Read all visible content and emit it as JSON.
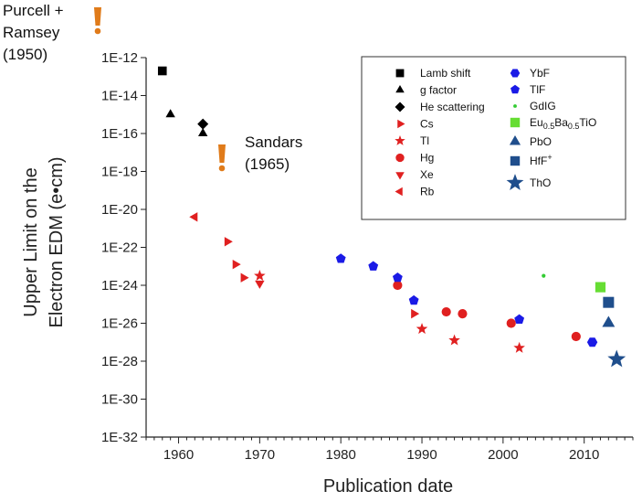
{
  "chart_data": {
    "type": "scatter",
    "title": "",
    "xlabel": "Publication date",
    "ylabel_line1": "Upper Limit on the",
    "ylabel_line2": "Electron EDM (e•cm)",
    "xlim": [
      1956,
      2016
    ],
    "ylim_log10": [
      -32,
      -12
    ],
    "x_ticks": [
      1960,
      1970,
      1980,
      1990,
      2000,
      2010
    ],
    "y_tick_labels": [
      "1E-12",
      "1E-14",
      "1E-16",
      "1E-18",
      "1E-20",
      "1E-22",
      "1E-24",
      "1E-26",
      "1E-28",
      "1E-30",
      "1E-32"
    ],
    "series": [
      {
        "name": "Lamb shift",
        "marker": "square",
        "color": "#000000",
        "points": [
          [
            1958,
            -12.7
          ]
        ]
      },
      {
        "name": "g factor",
        "marker": "triangle-up",
        "color": "#000000",
        "points": [
          [
            1959,
            -15.0
          ],
          [
            1963,
            -16.0
          ]
        ]
      },
      {
        "name": "He scattering",
        "marker": "diamond",
        "color": "#000000",
        "points": [
          [
            1963,
            -15.5
          ]
        ]
      },
      {
        "name": "Cs",
        "marker": "triangle-right",
        "color": "#e02020",
        "points": [
          [
            1966,
            -21.7
          ],
          [
            1967,
            -22.9
          ],
          [
            1968,
            -23.6
          ],
          [
            1989,
            -25.5
          ]
        ]
      },
      {
        "name": "Tl",
        "marker": "star",
        "color": "#e02020",
        "points": [
          [
            1970,
            -23.5
          ],
          [
            1990,
            -26.3
          ],
          [
            1994,
            -26.9
          ],
          [
            2002,
            -27.3
          ]
        ]
      },
      {
        "name": "Hg",
        "marker": "circle",
        "color": "#e02020",
        "points": [
          [
            1987,
            -24.0
          ],
          [
            1993,
            -25.4
          ],
          [
            1995,
            -25.5
          ],
          [
            2001,
            -26.0
          ],
          [
            2009,
            -26.7
          ]
        ]
      },
      {
        "name": "Xe",
        "marker": "triangle-down",
        "color": "#e02020",
        "points": [
          [
            1970,
            -23.9
          ]
        ]
      },
      {
        "name": "Rb",
        "marker": "triangle-left",
        "color": "#e02020",
        "points": [
          [
            1962,
            -20.4
          ]
        ]
      },
      {
        "name": "YbF",
        "marker": "hexagon",
        "color": "#1a1ae6",
        "points": [
          [
            2011,
            -27.0
          ]
        ]
      },
      {
        "name": "TlF",
        "marker": "pentagon",
        "color": "#1a1ae6",
        "points": [
          [
            1980,
            -22.6
          ],
          [
            1984,
            -23.0
          ],
          [
            1987,
            -23.6
          ],
          [
            1989,
            -24.8
          ],
          [
            2002,
            -25.8
          ]
        ]
      },
      {
        "name": "GdIG",
        "marker": "dot",
        "color": "#33cc33",
        "points": [
          [
            2005,
            -23.5
          ]
        ]
      },
      {
        "name": "Eu0.5Ba0.5TiO",
        "marker": "square",
        "color": "#66dd33",
        "points": [
          [
            2012,
            -24.1
          ]
        ]
      },
      {
        "name": "PbO",
        "marker": "triangle-up",
        "color": "#1f4e8c",
        "points": [
          [
            2013,
            -26.0
          ]
        ]
      },
      {
        "name": "HfF+",
        "marker": "square",
        "color": "#1f4e8c",
        "points": [
          [
            2013,
            -24.9
          ]
        ]
      },
      {
        "name": "ThO",
        "marker": "star",
        "color": "#1f4e8c",
        "points": [
          [
            2014,
            -27.9
          ]
        ]
      }
    ],
    "legend": {
      "placement": "top-right",
      "col1": [
        {
          "series": "Lamb shift",
          "label": "Lamb shift"
        },
        {
          "series": "g factor",
          "label": "g factor"
        },
        {
          "series": "He scattering",
          "label": "He scattering"
        },
        {
          "series": "Cs",
          "label": "Cs"
        },
        {
          "series": "Tl",
          "label": "Tl"
        },
        {
          "series": "Hg",
          "label": "Hg"
        },
        {
          "series": "Xe",
          "label": "Xe"
        },
        {
          "series": "Rb",
          "label": "Rb"
        }
      ],
      "col2": [
        {
          "series": "YbF",
          "label": "YbF"
        },
        {
          "series": "TlF",
          "label": "TlF"
        },
        {
          "series": "GdIG",
          "label": "GdIG"
        },
        {
          "series": "Eu0.5Ba0.5TiO",
          "label": "Eu0.5Ba0.5TiO",
          "label_parts": [
            "Eu",
            "0.5",
            "Ba",
            "0.5",
            "TiO"
          ]
        },
        {
          "series": "PbO",
          "label": "PbO"
        },
        {
          "series": "HfF+",
          "label": "HfF+",
          "label_parts": [
            "HfF",
            "+"
          ]
        },
        {
          "series": "ThO",
          "label": "ThO"
        }
      ]
    },
    "annotations": [
      {
        "text_lines": [
          "Purcell +",
          "Ramsey",
          "(1950)"
        ],
        "marker": "exclamation",
        "color": "#e07b1a"
      },
      {
        "text_lines": [
          "Sandars",
          "(1965)"
        ],
        "marker": "exclamation",
        "color": "#e07b1a"
      }
    ]
  }
}
